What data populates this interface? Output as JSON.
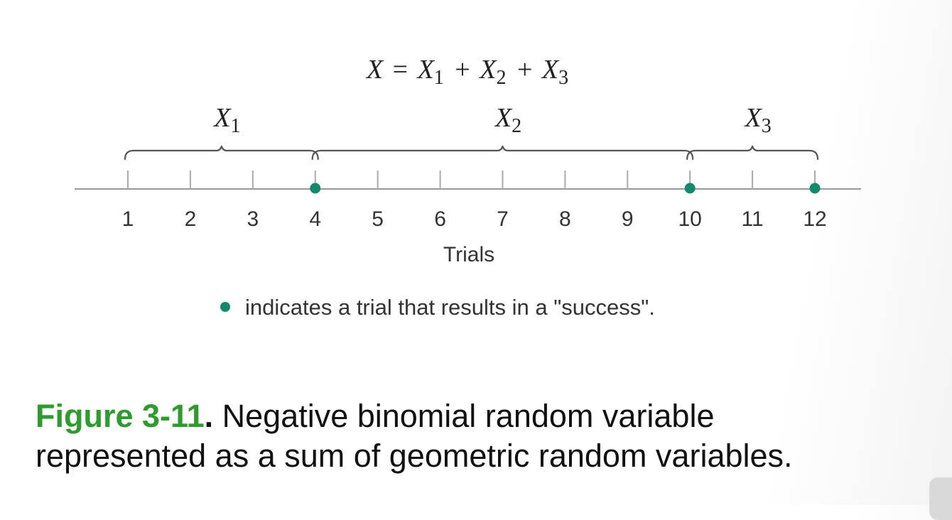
{
  "equation": {
    "lhs": "X",
    "equals": "=",
    "terms": [
      {
        "base": "X",
        "sub": "1"
      },
      {
        "base": "X",
        "sub": "2"
      },
      {
        "base": "X",
        "sub": "3"
      }
    ],
    "plus": "+"
  },
  "braces": [
    {
      "base": "X",
      "sub": "1",
      "from_trial": 1,
      "to_trial": 4
    },
    {
      "base": "X",
      "sub": "2",
      "from_trial": 4,
      "to_trial": 10
    },
    {
      "base": "X",
      "sub": "3",
      "from_trial": 10,
      "to_trial": 12
    }
  ],
  "axis": {
    "title": "Trials",
    "min": 1,
    "max": 12,
    "ticks": [
      "1",
      "2",
      "3",
      "4",
      "5",
      "6",
      "7",
      "8",
      "9",
      "10",
      "11",
      "12"
    ]
  },
  "successes": [
    4,
    10,
    12
  ],
  "legend": {
    "text": "indicates a trial that results in a \"success\"."
  },
  "caption": {
    "label": "Figure 3-11",
    "separator": ".",
    "text": " Negative binomial random variable represented as a sum of geometric random variables."
  },
  "colors": {
    "success_dot": "#138a6c",
    "figure_label": "#2e9b2e"
  }
}
